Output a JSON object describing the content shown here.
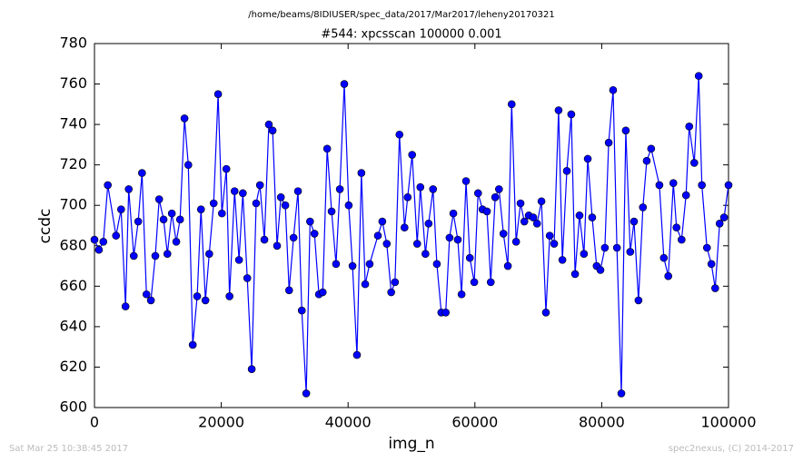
{
  "page_title": "/home/beams/8IDIUSER/spec_data/2017/Mar2017/leheny20170321",
  "footer": {
    "left": "Sat Mar 25 10:38:45 2017",
    "right": "spec2nexus, (C) 2014-2017"
  },
  "chart_data": {
    "type": "line",
    "title": "#544: xpcsscan 100000 0.001",
    "x_label": "img_n",
    "y_label": "ccdc",
    "color": "#0000ff",
    "marker": "circle",
    "xlim": [
      0,
      100000
    ],
    "xticks": [
      0,
      20000,
      40000,
      60000,
      80000,
      100000
    ],
    "ylim": [
      600,
      780
    ],
    "yticks": [
      600,
      620,
      640,
      660,
      680,
      700,
      720,
      740,
      760,
      780
    ],
    "x": [
      0,
      700,
      1400,
      2100,
      3400,
      4200,
      4900,
      5400,
      6200,
      6900,
      7500,
      8200,
      8900,
      9600,
      10200,
      10900,
      11500,
      12200,
      12900,
      13500,
      14200,
      14800,
      15500,
      16200,
      16800,
      17500,
      18100,
      18800,
      19500,
      20100,
      20800,
      21300,
      22100,
      22800,
      23400,
      24100,
      24800,
      25500,
      26100,
      26800,
      27500,
      28100,
      28800,
      29400,
      30100,
      30700,
      31400,
      32100,
      32700,
      33400,
      34000,
      34700,
      35400,
      36000,
      36700,
      37400,
      38100,
      38700,
      39400,
      40100,
      40700,
      41400,
      42100,
      42700,
      43400,
      44700,
      45400,
      46100,
      46800,
      47400,
      48100,
      48900,
      49400,
      50100,
      50900,
      51400,
      52200,
      52700,
      53400,
      54000,
      54700,
      55400,
      56000,
      56600,
      57300,
      57900,
      58600,
      59200,
      59900,
      60500,
      61200,
      61900,
      62500,
      63200,
      63800,
      64500,
      65200,
      65800,
      66500,
      67200,
      67800,
      68500,
      69200,
      69800,
      70500,
      71200,
      71800,
      72500,
      73200,
      73800,
      74500,
      75200,
      75800,
      76500,
      77200,
      77800,
      78500,
      79200,
      79800,
      80500,
      81100,
      81800,
      82400,
      83100,
      83800,
      84500,
      85100,
      85800,
      86500,
      87100,
      87800,
      89100,
      89800,
      90500,
      91300,
      91800,
      92600,
      93300,
      93800,
      94600,
      95300,
      95800,
      96600,
      97300,
      97900,
      98600,
      99300,
      100000
    ],
    "values": [
      683,
      678,
      682,
      710,
      685,
      698,
      650,
      708,
      675,
      692,
      716,
      656,
      653,
      675,
      703,
      693,
      676,
      696,
      682,
      693,
      743,
      720,
      631,
      655,
      698,
      653,
      676,
      701,
      755,
      696,
      718,
      655,
      707,
      673,
      706,
      664,
      619,
      701,
      710,
      683,
      740,
      737,
      680,
      704,
      700,
      658,
      684,
      707,
      648,
      607,
      692,
      686,
      656,
      657,
      728,
      697,
      671,
      708,
      760,
      700,
      670,
      626,
      716,
      661,
      671,
      685,
      692,
      681,
      657,
      662,
      735,
      689,
      704,
      725,
      681,
      709,
      676,
      691,
      708,
      671,
      647,
      647,
      684,
      696,
      683,
      656,
      712,
      674,
      662,
      706,
      698,
      697,
      662,
      704,
      708,
      686,
      670,
      750,
      682,
      701,
      692,
      695,
      694,
      691,
      702,
      647,
      685,
      681,
      747,
      673,
      717,
      745,
      666,
      695,
      676,
      723,
      694,
      670,
      668,
      679,
      731,
      757,
      679,
      607,
      737,
      677,
      692,
      653,
      699,
      722,
      728,
      710,
      674,
      665,
      711,
      689,
      683,
      705,
      739,
      721,
      764,
      710,
      679,
      671,
      659,
      691,
      694,
      710
    ]
  }
}
